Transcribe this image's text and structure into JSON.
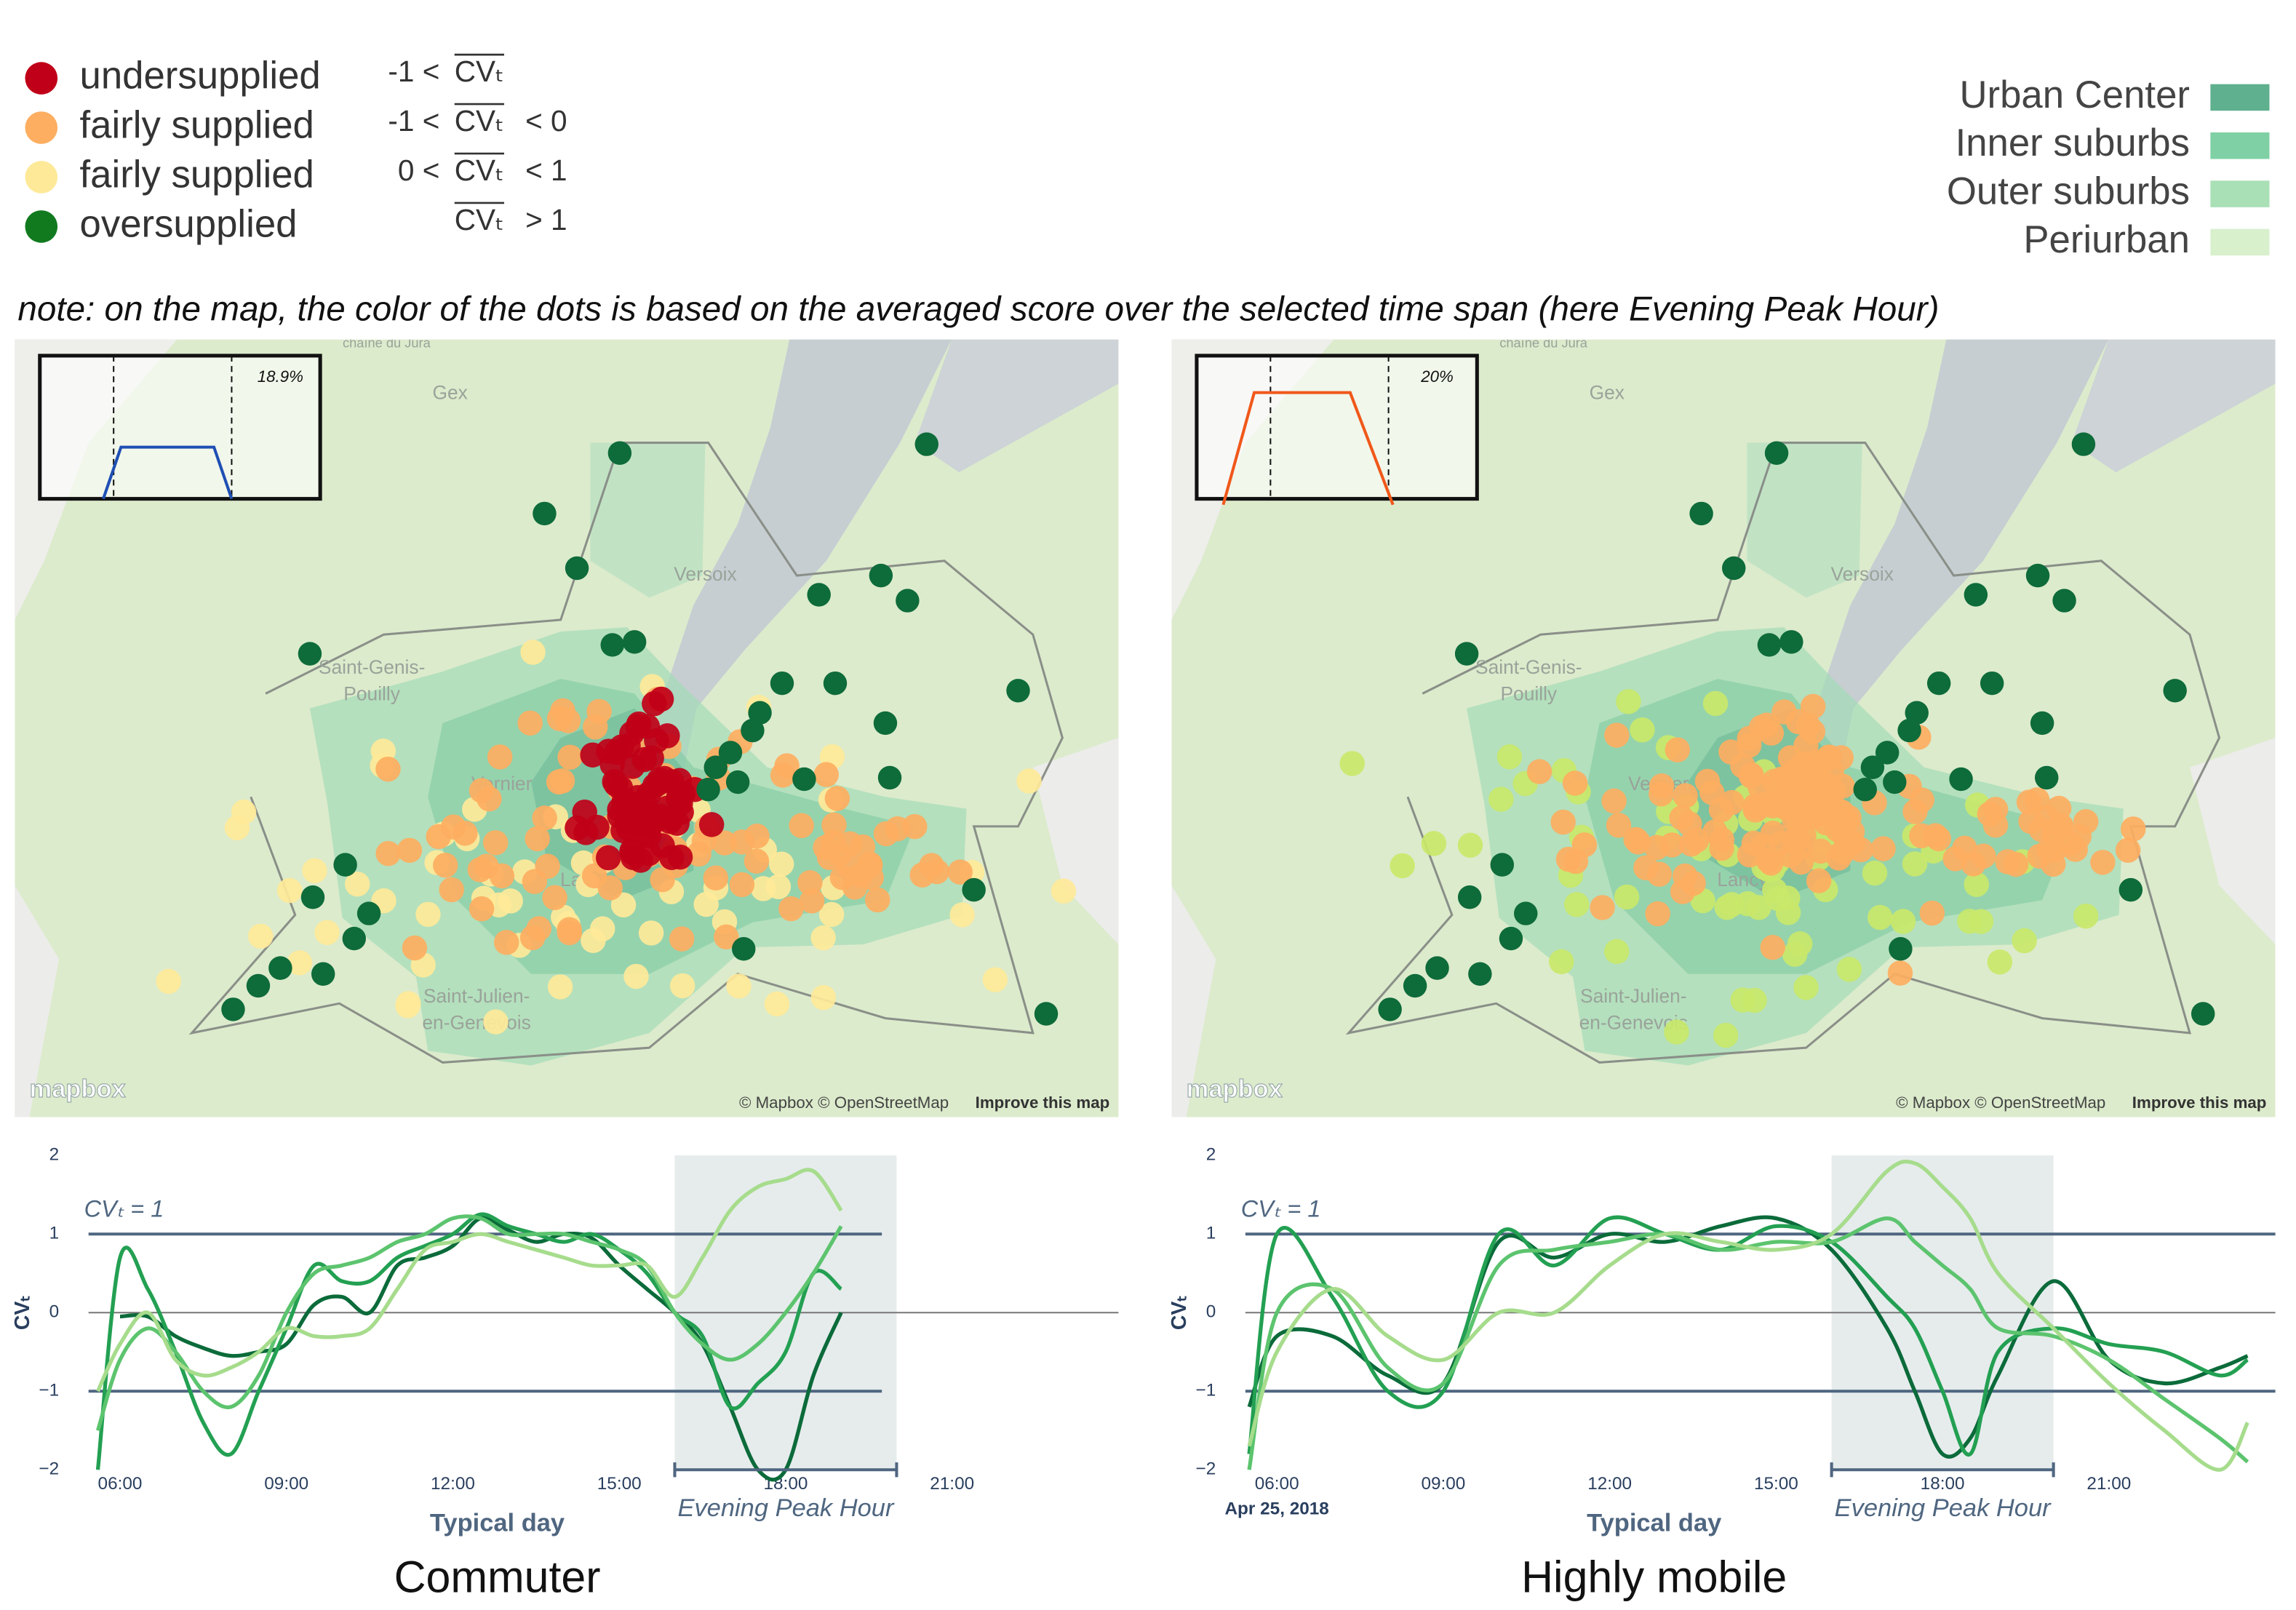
{
  "legend_supply": [
    {
      "label": "undersupplied",
      "color": "#c00018",
      "prefix": "-1 <",
      "symbol": "CVₜ"
    },
    {
      "label": "fairly supplied",
      "color": "#fdae61",
      "prefix": "-1 <",
      "symbol": "CVₜ",
      "suffix": "< 0"
    },
    {
      "label": "fairly supplied",
      "color": "#fee999",
      "prefix": "0 <",
      "symbol": "CVₜ",
      "suffix": "< 1"
    },
    {
      "label": "oversupplied",
      "color": "#117a1f",
      "symbol": "CVₜ",
      "suffix": "> 1"
    }
  ],
  "legend_zones": [
    {
      "label": "Urban Center",
      "color": "#5fb08e"
    },
    {
      "label": "Inner suburbs",
      "color": "#7fd0a4"
    },
    {
      "label": "Outer suburbs",
      "color": "#a9e0b6"
    },
    {
      "label": "Periurban",
      "color": "#d8f0cc"
    }
  ],
  "note": "note: on the map, the color of the dots is based on the averaged score over the selected time span (here Evening Peak Hour)",
  "map_labels": [
    "chaîne du Jura",
    "Gex",
    "Versoix",
    "Saint-Genis-",
    "Pouilly",
    "Vernier",
    "Lancy",
    "Saint-Julien-",
    "en-Genevois"
  ],
  "map_credit": {
    "logo": "mapbox",
    "attribution": "© Mapbox © OpenStreetMap",
    "link": "Improve this map"
  },
  "panels": [
    {
      "caption": "Commuter",
      "inset_label": "18.9%",
      "inset_color": "#1f4fb4",
      "dot_colors": [
        "#c00018",
        "#fdae61",
        "#fee999",
        "#0e6b3a"
      ],
      "chart": {
        "type": "line",
        "xlabel": "Typical day",
        "ylabel": "CVₜ",
        "annotation": "CVₜ = 1",
        "x": [
          5.6,
          6,
          6.5,
          7,
          7.5,
          8,
          8.5,
          9,
          9.5,
          10,
          10.5,
          11,
          11.5,
          12,
          12.5,
          13,
          13.5,
          14,
          14.5,
          15,
          15.5,
          16,
          16.5,
          17,
          17.5,
          18,
          18.5,
          19
        ],
        "series": [
          {
            "name": "Urban Center",
            "color": "#0b6b3a",
            "values": [
              null,
              -0.05,
              -0.05,
              -0.3,
              -0.45,
              -0.55,
              -0.5,
              -0.4,
              0.1,
              0.2,
              0.0,
              0.6,
              0.7,
              0.85,
              1.2,
              1.05,
              0.9,
              1.0,
              0.95,
              0.6,
              0.3,
              0.0,
              -0.4,
              -1.2,
              -2.0,
              -2.0,
              -0.8,
              0.0
            ]
          },
          {
            "name": "Inner suburbs",
            "color": "#23a052",
            "values": [
              -2.0,
              0.7,
              0.3,
              -0.5,
              -1.4,
              -1.8,
              -1.0,
              -0.2,
              0.6,
              0.4,
              0.4,
              0.7,
              0.85,
              1.0,
              1.25,
              1.1,
              1.0,
              0.9,
              1.0,
              0.8,
              0.5,
              0.0,
              -0.3,
              -1.2,
              -0.9,
              -0.5,
              0.5,
              0.3
            ]
          },
          {
            "name": "Outer suburbs",
            "color": "#5cc46e",
            "values": [
              -1.5,
              -0.6,
              -0.2,
              -0.5,
              -1.0,
              -1.2,
              -0.8,
              0.0,
              0.5,
              0.6,
              0.7,
              0.9,
              1.0,
              1.2,
              1.2,
              1.0,
              1.0,
              1.0,
              0.9,
              0.8,
              0.6,
              0.0,
              -0.4,
              -0.6,
              -0.4,
              0.0,
              0.5,
              1.1
            ]
          },
          {
            "name": "Periurban",
            "color": "#a6dc8c",
            "values": [
              -1.0,
              -0.4,
              0.0,
              -0.6,
              -0.8,
              -0.7,
              -0.5,
              -0.2,
              -0.3,
              -0.3,
              -0.2,
              0.3,
              0.8,
              0.9,
              1.0,
              0.9,
              0.8,
              0.7,
              0.6,
              0.6,
              0.6,
              0.2,
              0.7,
              1.3,
              1.6,
              1.7,
              1.8,
              1.3
            ]
          }
        ],
        "xlim": [
          4.9,
          24
        ],
        "ylim": [
          -2,
          2
        ],
        "xticks": [
          {
            "value": 6,
            "label": "06:00"
          },
          {
            "value": 9,
            "label": "09:00"
          },
          {
            "value": 12,
            "label": "12:00"
          },
          {
            "value": 15,
            "label": "15:00"
          },
          {
            "value": 18,
            "label": "18:00"
          },
          {
            "value": 21,
            "label": "21:00"
          }
        ],
        "yticks": [
          {
            "value": -2,
            "label": "−2"
          },
          {
            "value": -1,
            "label": "−1"
          },
          0,
          1,
          2
        ],
        "reference_lines": [
          -1,
          1
        ],
        "highlight": {
          "range": [
            16,
            20
          ],
          "label": "Evening Peak Hour"
        }
      }
    },
    {
      "caption": "Highly mobile",
      "inset_label": "20%",
      "inset_color": "#f0581a",
      "dot_colors": [
        "#fdae61",
        "#fdae61",
        "#c9e86a",
        "#0e6b3a"
      ],
      "chart": {
        "type": "line",
        "xlabel": "Typical day",
        "ylabel": "CVₜ",
        "annotation": "CVₜ = 1",
        "date_label": "Apr 25, 2018",
        "x": [
          5.5,
          6,
          7,
          8,
          9,
          10,
          11,
          12,
          13,
          14,
          15,
          16,
          17,
          17.5,
          18,
          18.5,
          19,
          20,
          21,
          22,
          23,
          23.5
        ],
        "series": [
          {
            "name": "Urban Center",
            "color": "#0b6b3a",
            "values": [
              -1.2,
              -0.3,
              -0.3,
              -0.8,
              -0.9,
              0.9,
              0.7,
              1.0,
              0.9,
              1.1,
              1.2,
              0.8,
              -0.2,
              -1.0,
              -1.8,
              -1.6,
              -0.8,
              0.4,
              -0.6,
              -0.9,
              -0.7,
              -0.55
            ]
          },
          {
            "name": "Inner suburbs",
            "color": "#23a052",
            "values": [
              -1.8,
              1.0,
              0.2,
              -1.0,
              -1.0,
              1.0,
              0.6,
              1.2,
              1.0,
              0.8,
              1.1,
              0.9,
              0.2,
              -0.2,
              -1.0,
              -1.8,
              -0.5,
              -0.2,
              -0.4,
              -0.5,
              -0.8,
              -0.6
            ]
          },
          {
            "name": "Outer suburbs",
            "color": "#5cc46e",
            "values": [
              -2.0,
              0.0,
              0.3,
              -0.7,
              -0.9,
              0.6,
              0.8,
              0.9,
              1.0,
              0.8,
              0.9,
              0.9,
              1.2,
              0.9,
              0.6,
              0.3,
              -0.2,
              -0.3,
              -0.6,
              -1.1,
              -1.6,
              -1.9
            ]
          },
          {
            "name": "Periurban",
            "color": "#a6dc8c",
            "values": [
              -1.7,
              -0.5,
              0.3,
              -0.3,
              -0.6,
              0.0,
              0.0,
              0.6,
              1.0,
              0.9,
              0.8,
              1.0,
              1.8,
              1.9,
              1.6,
              1.2,
              0.5,
              -0.2,
              -0.9,
              -1.5,
              -2.0,
              -1.4
            ]
          }
        ],
        "xlim": [
          4.9,
          24
        ],
        "ylim": [
          -2,
          2
        ],
        "xticks": [
          {
            "value": 6,
            "label": "06:00"
          },
          {
            "value": 9,
            "label": "09:00"
          },
          {
            "value": 12,
            "label": "12:00"
          },
          {
            "value": 15,
            "label": "15:00"
          },
          {
            "value": 18,
            "label": "18:00"
          },
          {
            "value": 21,
            "label": "21:00"
          }
        ],
        "yticks": [
          {
            "value": -2,
            "label": "−2"
          },
          {
            "value": -1,
            "label": "−1"
          },
          0,
          1,
          2
        ],
        "reference_lines": [
          -1,
          1
        ],
        "highlight": {
          "range": [
            16,
            20
          ],
          "label": "Evening Peak Hour"
        }
      }
    }
  ]
}
